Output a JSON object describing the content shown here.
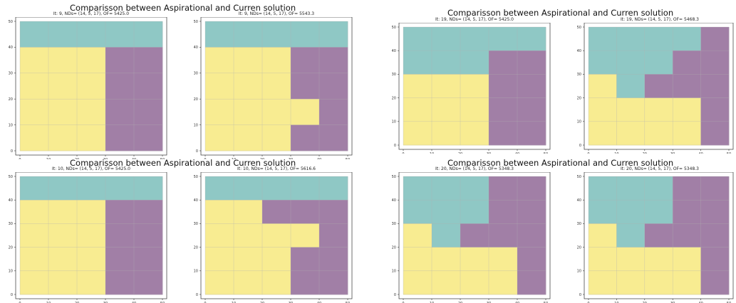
{
  "colors": {
    "teal": "#8fc8c5",
    "purple": "#a17fa6",
    "yellow": "#f8ec91",
    "grid": "#b0b0b0",
    "axis": "#333333"
  },
  "groups": [
    {
      "title": "Comparisson between Aspirational and Curren solution",
      "panels": [
        0,
        1
      ]
    },
    {
      "title": "Comparisson between Aspirational and Curren solution",
      "panels": [
        2,
        3
      ]
    },
    {
      "title": "Comparisson between Aspirational and Curren solution",
      "panels": [
        4,
        5
      ]
    },
    {
      "title": "Comparisson between Aspirational and Curren solution",
      "panels": [
        6,
        7
      ]
    }
  ],
  "chart_data": [
    {
      "type": "heatmap",
      "title": "It: 9, NDs= (14, 5, 17), OF= 5425.0",
      "xlim": [
        0,
        50
      ],
      "ylim": [
        0,
        50
      ],
      "xticks": [
        0,
        10,
        20,
        30,
        40,
        50
      ],
      "yticks": [
        0,
        10,
        20,
        30,
        40,
        50
      ],
      "grid": true,
      "cell_size": 10,
      "grid_values": [
        "TTTTT",
        "YYYPP",
        "YYYPP",
        "YYYPP",
        "YYYPP"
      ]
    },
    {
      "type": "heatmap",
      "title": "It: 9, NDs= (14, 5, 17), OF= 5543.3",
      "xlim": [
        0,
        50
      ],
      "ylim": [
        0,
        50
      ],
      "xticks": [
        0,
        10,
        20,
        30,
        40,
        50
      ],
      "yticks": [
        0,
        10,
        20,
        30,
        40,
        50
      ],
      "grid": true,
      "cell_size": 10,
      "grid_values": [
        "TTTTT",
        "YYYPP",
        "YYYPP",
        "YYYYP",
        "YYYPP"
      ]
    },
    {
      "type": "heatmap",
      "title": "It: 19, NDs= (14, 5, 17), OF= 5425.0",
      "xlim": [
        0,
        50
      ],
      "ylim": [
        0,
        50
      ],
      "xticks": [
        0,
        10,
        20,
        30,
        40,
        50
      ],
      "yticks": [
        0,
        10,
        20,
        30,
        40,
        50
      ],
      "grid": true,
      "cell_size": 10,
      "grid_values": [
        "TTTTT",
        "TTTPP",
        "YYYPP",
        "YYYPP",
        "YYYPP"
      ]
    },
    {
      "type": "heatmap",
      "title": "It: 19, NDs= (14, 5, 17), OF= 5468.3",
      "xlim": [
        0,
        50
      ],
      "ylim": [
        0,
        50
      ],
      "xticks": [
        0,
        10,
        20,
        30,
        40,
        50
      ],
      "yticks": [
        0,
        10,
        20,
        30,
        40,
        50
      ],
      "grid": true,
      "cell_size": 10,
      "grid_values": [
        "TTTTP",
        "TTTPP",
        "YTPPP",
        "YYYYP",
        "YYYYP"
      ]
    },
    {
      "type": "heatmap",
      "title": "It: 10, NDs= (14, 5, 17), OF= 5425.0",
      "xlim": [
        0,
        50
      ],
      "ylim": [
        0,
        50
      ],
      "xticks": [
        0,
        10,
        20,
        30,
        40,
        50
      ],
      "yticks": [
        0,
        10,
        20,
        30,
        40,
        50
      ],
      "grid": true,
      "cell_size": 10,
      "grid_values": [
        "TTTTT",
        "YYYPP",
        "YYYPP",
        "YYYPP",
        "YYYPP"
      ]
    },
    {
      "type": "heatmap",
      "title": "It: 10, NDs= (14, 5, 17), OF= 5616.6",
      "xlim": [
        0,
        50
      ],
      "ylim": [
        0,
        50
      ],
      "xticks": [
        0,
        10,
        20,
        30,
        40,
        50
      ],
      "yticks": [
        0,
        10,
        20,
        30,
        40,
        50
      ],
      "grid": true,
      "cell_size": 10,
      "grid_values": [
        "TTTTT",
        "YYPPP",
        "YYYYP",
        "YYYPP",
        "YYYPP"
      ]
    },
    {
      "type": "heatmap",
      "title": "It: 20, NDs= (14, 5, 17), OF= 5348.3",
      "xlim": [
        0,
        50
      ],
      "ylim": [
        0,
        50
      ],
      "xticks": [
        0,
        10,
        20,
        30,
        40,
        50
      ],
      "yticks": [
        0,
        10,
        20,
        30,
        40,
        50
      ],
      "grid": true,
      "cell_size": 10,
      "grid_values": [
        "TTTPP",
        "TTTPP",
        "YTPPP",
        "YYYYP",
        "YYYYP"
      ]
    },
    {
      "type": "heatmap",
      "title": "It: 20, NDs= (14, 5, 17), OF= 5348.3",
      "xlim": [
        0,
        50
      ],
      "ylim": [
        0,
        50
      ],
      "xticks": [
        0,
        10,
        20,
        30,
        40,
        50
      ],
      "yticks": [
        0,
        10,
        20,
        30,
        40,
        50
      ],
      "grid": true,
      "cell_size": 10,
      "grid_values": [
        "TTTPP",
        "TTTPP",
        "YTPPP",
        "YYYYP",
        "YYYYP"
      ]
    }
  ]
}
